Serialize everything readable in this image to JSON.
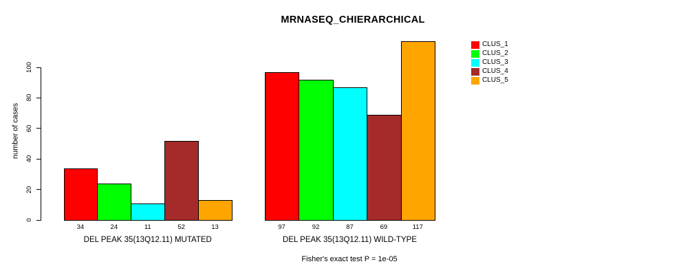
{
  "chart_data": {
    "type": "bar",
    "title": "MRNASEQ_CHIERARCHICAL",
    "ylabel": "number of cases",
    "xlabel": "",
    "categories": [
      "DEL PEAK 35(13Q12.11) MUTATED",
      "DEL PEAK 35(13Q12.11) WILD-TYPE"
    ],
    "series": [
      {
        "name": "CLUS_1",
        "color": "#FF0000",
        "values": [
          34,
          97
        ]
      },
      {
        "name": "CLUS_2",
        "color": "#00FF00",
        "values": [
          24,
          92
        ]
      },
      {
        "name": "CLUS_3",
        "color": "#00FFFF",
        "values": [
          11,
          87
        ]
      },
      {
        "name": "CLUS_4",
        "color": "#A52A2A",
        "values": [
          52,
          69
        ]
      },
      {
        "name": "CLUS_5",
        "color": "#FFA500",
        "values": [
          13,
          117
        ]
      }
    ],
    "yticks": [
      0,
      20,
      40,
      60,
      80,
      100
    ],
    "ylim": [
      0,
      120
    ],
    "bar_value_labels": [
      [
        34,
        24,
        11,
        52,
        13
      ],
      [
        97,
        92,
        87,
        69,
        117
      ]
    ],
    "grid": false,
    "legend_position": "top-right",
    "legend_entries": [
      "CLUS_1",
      "CLUS_2",
      "CLUS_3",
      "CLUS_4",
      "CLUS_5"
    ],
    "annotation": "Fisher's exact test P = 1e-05",
    "bar_border_color": "#000000",
    "axis_color": "#000000"
  }
}
